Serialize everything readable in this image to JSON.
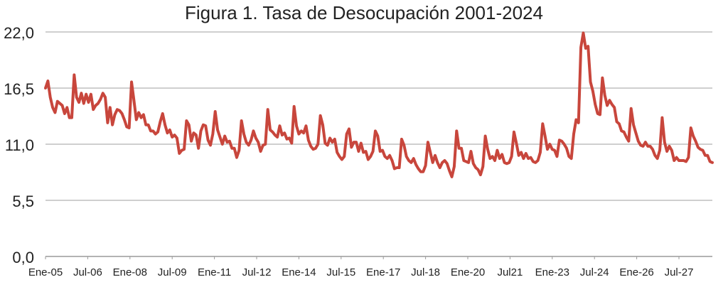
{
  "chart_data": {
    "type": "line",
    "title": "Figura 1. Tasa de Desocupación 2001-2024",
    "xlabel": "",
    "ylabel": "",
    "ylim": [
      0,
      22
    ],
    "y_ticks": [
      "0,0",
      "5,5",
      "11,0",
      "16,5",
      "22,0"
    ],
    "x_ticks": [
      "Ene-05",
      "Jul-06",
      "Ene-08",
      "Jul-09",
      "Ene-11",
      "Jul-12",
      "Ene-14",
      "Jul-15",
      "Ene-17",
      "Jul-18",
      "Ene-20",
      "Jul21",
      "Ene-23",
      "Jul-24",
      "Ene-26",
      "Jul-27"
    ],
    "grid": true,
    "legend": "none",
    "series_color": "#c8463c",
    "grid_color": "#bfbfbf",
    "x_period_months": [
      0,
      18,
      36,
      54,
      72,
      90,
      108,
      126,
      144,
      162,
      180,
      198,
      216,
      234,
      252,
      270
    ],
    "series": [
      {
        "values": [
          16.5,
          17.2,
          15.6,
          14.6,
          14.1,
          15.2,
          15.0,
          14.8,
          14.0,
          14.6,
          13.6,
          13.6,
          17.8,
          15.6,
          15.1,
          16.0,
          15.0,
          15.9,
          15.1,
          15.9,
          14.4,
          14.8,
          15.0,
          15.4,
          16.0,
          15.6,
          13.1,
          14.6,
          12.9,
          13.9,
          14.4,
          14.3,
          14.0,
          13.4,
          12.7,
          12.6,
          17.1,
          15.3,
          13.4,
          14.1,
          13.6,
          13.9,
          12.9,
          12.9,
          12.3,
          12.3,
          12.0,
          12.2,
          13.2,
          14.0,
          12.9,
          12.1,
          12.4,
          11.7,
          11.9,
          11.6,
          10.1,
          10.4,
          10.5,
          13.3,
          12.9,
          11.3,
          12.1,
          11.9,
          10.6,
          12.3,
          12.9,
          12.8,
          11.4,
          10.9,
          12.0,
          14.2,
          12.4,
          11.7,
          11.0,
          11.8,
          11.2,
          11.3,
          10.6,
          10.6,
          9.7,
          10.4,
          13.3,
          12.0,
          11.2,
          10.9,
          11.4,
          12.3,
          11.6,
          11.2,
          10.3,
          10.9,
          11.0,
          14.4,
          12.4,
          12.2,
          11.9,
          11.7,
          12.8,
          11.9,
          12.1,
          11.5,
          11.6,
          11.1,
          14.7,
          12.8,
          12.0,
          12.3,
          12.1,
          12.8,
          11.4,
          10.8,
          10.5,
          10.6,
          11.0,
          13.8,
          12.9,
          11.1,
          10.9,
          11.6,
          11.2,
          11.5,
          10.2,
          9.8,
          9.5,
          9.8,
          12.0,
          12.5,
          10.7,
          11.2,
          11.2,
          10.3,
          11.1,
          10.2,
          10.3,
          9.5,
          9.8,
          10.3,
          12.3,
          11.8,
          10.3,
          10.4,
          9.8,
          9.6,
          9.9,
          9.4,
          8.6,
          8.7,
          8.7,
          11.5,
          10.9,
          9.8,
          9.4,
          9.2,
          9.6,
          9.0,
          8.6,
          8.3,
          8.3,
          8.9,
          11.2,
          10.2,
          9.2,
          9.9,
          9.2,
          8.7,
          9.2,
          9.4,
          9.1,
          8.4,
          7.8,
          8.8,
          12.3,
          10.6,
          10.6,
          9.4,
          9.3,
          9.2,
          10.3,
          9.1,
          8.7,
          8.5,
          8.0,
          8.8,
          11.8,
          10.5,
          9.6,
          9.8,
          9.4,
          10.4,
          9.6,
          10.0,
          9.2,
          9.1,
          9.2,
          9.8,
          12.2,
          11.1,
          9.9,
          10.2,
          9.6,
          10.1,
          9.6,
          9.7,
          9.3,
          9.2,
          9.4,
          10.2,
          13.0,
          11.8,
          10.5,
          11.0,
          10.5,
          10.4,
          9.8,
          11.4,
          11.3,
          11.0,
          10.6,
          9.8,
          9.6,
          12.0,
          13.4,
          13.1,
          20.5,
          21.9,
          20.4,
          20.6,
          17.1,
          16.2,
          14.9,
          14.0,
          13.9,
          17.5,
          15.8,
          14.8,
          15.3,
          14.9,
          14.6,
          13.2,
          13.0,
          12.3,
          12.2,
          11.7,
          11.3,
          14.5,
          12.9,
          12.1,
          11.3,
          10.9,
          10.8,
          11.2,
          10.8,
          10.8,
          10.5,
          9.9,
          9.6,
          10.4,
          13.6,
          11.2,
          10.3,
          10.8,
          10.4,
          9.4,
          9.7,
          9.4,
          9.4,
          9.4,
          9.3,
          9.7,
          12.6,
          11.8,
          11.3,
          10.7,
          10.5,
          10.4,
          9.9,
          9.9,
          9.3,
          9.2
        ]
      }
    ]
  }
}
